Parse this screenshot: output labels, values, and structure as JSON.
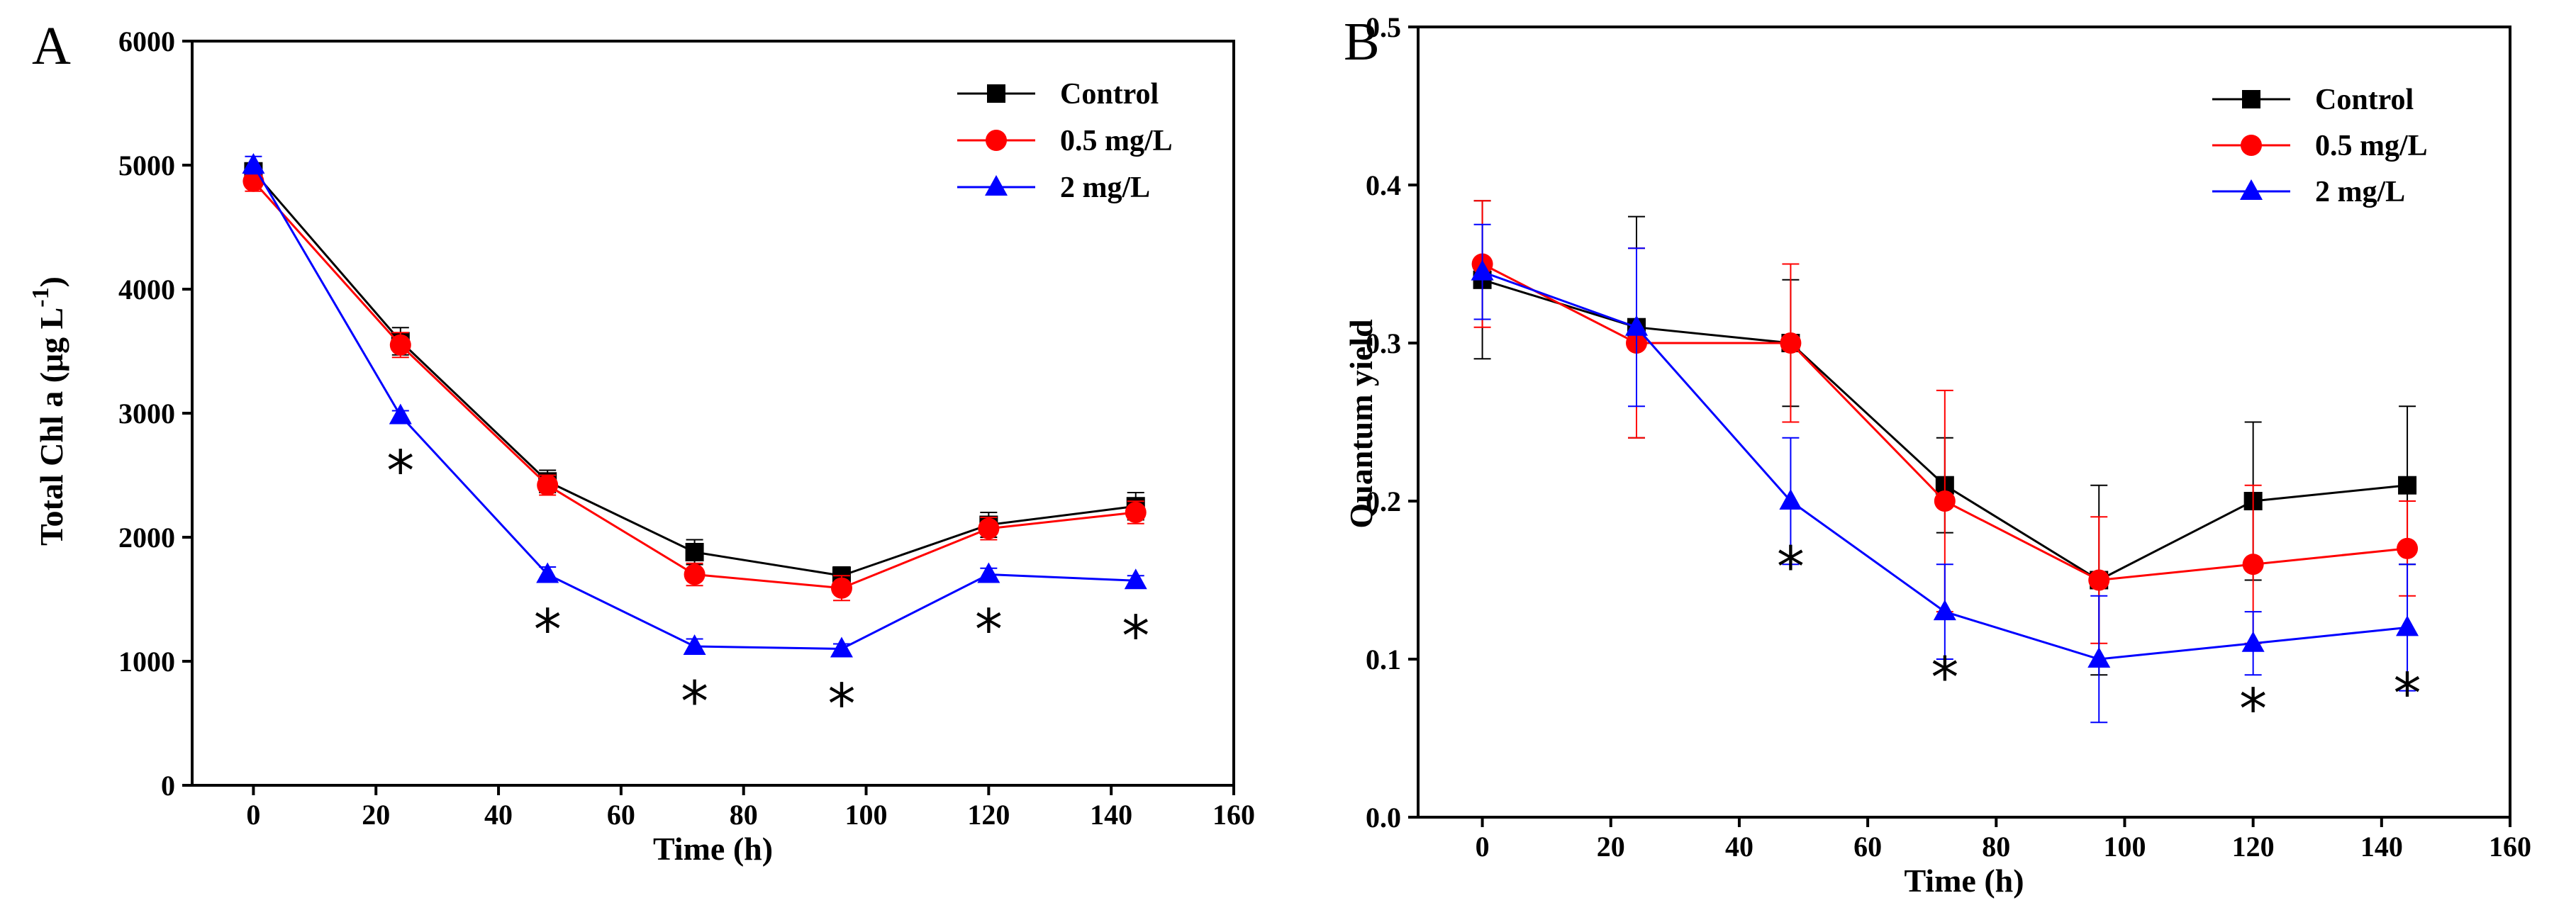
{
  "colors": {
    "control": "#000000",
    "low": "#ff0000",
    "high": "#0000ff"
  },
  "chart_data": [
    {
      "type": "line",
      "panel_label": "A",
      "xlabel": "Time (h)",
      "ylabel": "Total Chl a (μg L",
      "ylabel_sup": "-1",
      "ylabel_close": ")",
      "xlim": [
        -10,
        160
      ],
      "ylim": [
        0,
        6000
      ],
      "xticks": [
        0,
        20,
        40,
        60,
        80,
        100,
        120,
        140,
        160
      ],
      "yticks": [
        0,
        1000,
        2000,
        3000,
        4000,
        5000,
        6000
      ],
      "x": [
        0,
        24,
        48,
        72,
        96,
        120,
        144
      ],
      "series": [
        {
          "name": "Control",
          "marker": "square",
          "color": "#000000",
          "values": [
            4950,
            3580,
            2450,
            1880,
            1690,
            2100,
            2250
          ],
          "errors": [
            60,
            110,
            90,
            100,
            70,
            100,
            110
          ]
        },
        {
          "name": "0.5 mg/L",
          "marker": "circle",
          "color": "#ff0000",
          "values": [
            4870,
            3550,
            2420,
            1700,
            1590,
            2070,
            2200
          ],
          "errors": [
            80,
            100,
            80,
            90,
            100,
            90,
            90
          ]
        },
        {
          "name": "2 mg/L",
          "marker": "triangle",
          "color": "#0000ff",
          "values": [
            5000,
            2980,
            1700,
            1120,
            1100,
            1700,
            1650
          ],
          "errors": [
            70,
            40,
            60,
            60,
            40,
            50,
            40
          ]
        }
      ],
      "significance": [
        {
          "x": 24,
          "label": "*"
        },
        {
          "x": 48,
          "label": "*"
        },
        {
          "x": 72,
          "label": "*"
        },
        {
          "x": 96,
          "label": "*"
        },
        {
          "x": 120,
          "label": "*"
        },
        {
          "x": 144,
          "label": "*"
        }
      ]
    },
    {
      "type": "line",
      "panel_label": "B",
      "xlabel": "Time (h)",
      "ylabel": "Quantum yield",
      "xlim": [
        -10,
        160
      ],
      "ylim": [
        0.0,
        0.5
      ],
      "xticks": [
        0,
        20,
        40,
        60,
        80,
        100,
        120,
        140,
        160
      ],
      "yticks": [
        "0.0",
        "0.1",
        "0.2",
        "0.3",
        "0.4",
        "0.5"
      ],
      "x": [
        0,
        24,
        48,
        72,
        96,
        120,
        144
      ],
      "series": [
        {
          "name": "Control",
          "marker": "square",
          "color": "#000000",
          "values": [
            0.34,
            0.31,
            0.3,
            0.21,
            0.15,
            0.2,
            0.21
          ],
          "errors": [
            0.05,
            0.07,
            0.04,
            0.03,
            0.06,
            0.05,
            0.05
          ]
        },
        {
          "name": "0.5 mg/L",
          "marker": "circle",
          "color": "#ff0000",
          "values": [
            0.35,
            0.3,
            0.3,
            0.2,
            0.15,
            0.16,
            0.17
          ],
          "errors": [
            0.04,
            0.06,
            0.05,
            0.07,
            0.04,
            0.05,
            0.03
          ]
        },
        {
          "name": "2 mg/L",
          "marker": "triangle",
          "color": "#0000ff",
          "values": [
            0.345,
            0.31,
            0.2,
            0.13,
            0.1,
            0.11,
            0.12
          ],
          "errors": [
            0.03,
            0.05,
            0.04,
            0.03,
            0.04,
            0.02,
            0.04
          ]
        }
      ],
      "significance": [
        {
          "x": 48,
          "label": "*"
        },
        {
          "x": 72,
          "label": "*"
        },
        {
          "x": 120,
          "label": "*"
        },
        {
          "x": 144,
          "label": "*"
        }
      ]
    }
  ]
}
